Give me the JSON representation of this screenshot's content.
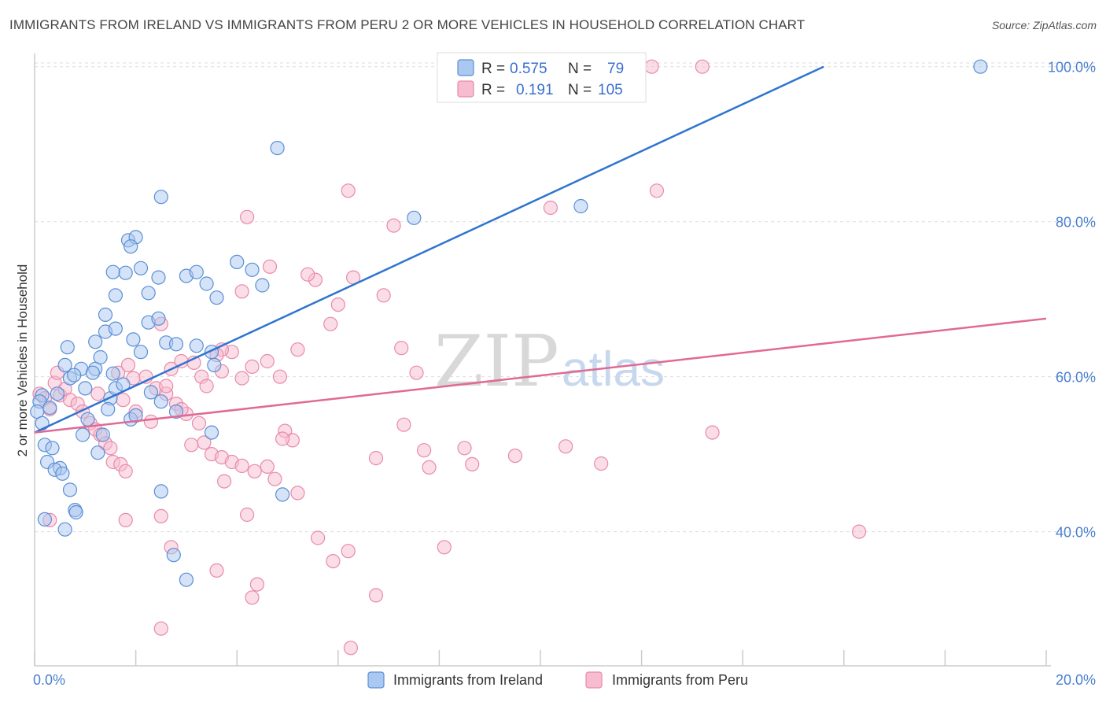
{
  "header": {
    "title": "IMMIGRANTS FROM IRELAND VS IMMIGRANTS FROM PERU 2 OR MORE VEHICLES IN HOUSEHOLD CORRELATION CHART",
    "source": "Source: ZipAtlas.com"
  },
  "watermark": {
    "zip": "ZIP",
    "atlas": "atlas"
  },
  "legend_stats": {
    "ireland": {
      "r_label": "R =",
      "r_value": "0.575",
      "n_label": "N =",
      "n_value": "79"
    },
    "peru": {
      "r_label": "R =",
      "r_value": "0.191",
      "n_label": "N =",
      "n_value": "105"
    }
  },
  "colors": {
    "ireland_fill": "#aac8f0",
    "ireland_stroke": "#5b8fd6",
    "ireland_line": "#2f74d0",
    "peru_fill": "#f7bcd0",
    "peru_stroke": "#e88aab",
    "peru_line": "#e06a95",
    "tick_label": "#4a7fd0",
    "grid": "#dddddd"
  },
  "chart_data": {
    "type": "scatter",
    "title": "IMMIGRANTS FROM IRELAND VS IMMIGRANTS FROM PERU 2 OR MORE VEHICLES IN HOUSEHOLD CORRELATION CHART",
    "xlabel": "",
    "ylabel": "2 or more Vehicles in Household",
    "xlim": [
      0,
      20
    ],
    "ylim": [
      22.7,
      101.7
    ],
    "x_tick_labels": [
      "0.0%",
      "20.0%"
    ],
    "y_ticks": [
      40,
      60,
      80,
      100
    ],
    "y_tick_labels": [
      "40.0%",
      "60.0%",
      "80.0%",
      "100.0%"
    ],
    "grid": true,
    "legend_position": "bottom",
    "series": [
      {
        "name": "Immigrants from Ireland",
        "trend": {
          "x0": 0,
          "y0": 52.8,
          "x1": 15.6,
          "y1": 100
        },
        "points": [
          [
            0.15,
            57.6
          ],
          [
            0.1,
            56.8
          ],
          [
            0.05,
            55.5
          ],
          [
            0.15,
            54.0
          ],
          [
            0.3,
            56.0
          ],
          [
            0.45,
            57.8
          ],
          [
            0.2,
            51.2
          ],
          [
            0.35,
            50.8
          ],
          [
            0.25,
            49.0
          ],
          [
            0.5,
            48.2
          ],
          [
            0.7,
            45.4
          ],
          [
            0.8,
            42.8
          ],
          [
            0.82,
            42.5
          ],
          [
            0.2,
            41.6
          ],
          [
            0.6,
            40.3
          ],
          [
            0.4,
            48.0
          ],
          [
            0.55,
            47.5
          ],
          [
            0.7,
            59.8
          ],
          [
            0.92,
            61.0
          ],
          [
            0.78,
            60.2
          ],
          [
            0.95,
            52.5
          ],
          [
            1.0,
            58.5
          ],
          [
            1.05,
            54.5
          ],
          [
            0.65,
            63.8
          ],
          [
            0.6,
            61.5
          ],
          [
            1.2,
            61.0
          ],
          [
            1.3,
            62.5
          ],
          [
            1.15,
            60.5
          ],
          [
            1.5,
            57.2
          ],
          [
            1.55,
            60.4
          ],
          [
            1.6,
            58.5
          ],
          [
            1.75,
            59.0
          ],
          [
            1.45,
            55.8
          ],
          [
            1.35,
            52.5
          ],
          [
            1.25,
            50.2
          ],
          [
            1.9,
            54.5
          ],
          [
            2.0,
            55.0
          ],
          [
            2.3,
            58.0
          ],
          [
            2.5,
            56.8
          ],
          [
            2.8,
            55.5
          ],
          [
            1.4,
            65.8
          ],
          [
            1.2,
            64.5
          ],
          [
            1.6,
            66.2
          ],
          [
            1.95,
            64.8
          ],
          [
            2.1,
            63.2
          ],
          [
            2.25,
            67.0
          ],
          [
            2.45,
            67.5
          ],
          [
            2.6,
            64.4
          ],
          [
            2.8,
            64.2
          ],
          [
            3.2,
            64.0
          ],
          [
            3.5,
            63.2
          ],
          [
            3.55,
            61.5
          ],
          [
            1.4,
            68.0
          ],
          [
            1.6,
            70.5
          ],
          [
            1.55,
            73.5
          ],
          [
            1.8,
            73.4
          ],
          [
            2.1,
            74.0
          ],
          [
            2.25,
            70.8
          ],
          [
            2.45,
            72.8
          ],
          [
            3.0,
            73.0
          ],
          [
            3.2,
            73.5
          ],
          [
            3.4,
            72.0
          ],
          [
            3.6,
            70.2
          ],
          [
            4.5,
            71.8
          ],
          [
            4.0,
            74.8
          ],
          [
            4.3,
            73.8
          ],
          [
            1.85,
            77.6
          ],
          [
            2.0,
            78.0
          ],
          [
            1.9,
            76.8
          ],
          [
            2.5,
            83.2
          ],
          [
            4.8,
            89.5
          ],
          [
            7.5,
            80.5
          ],
          [
            10.8,
            82.0
          ],
          [
            18.7,
            100
          ],
          [
            4.9,
            44.8
          ],
          [
            2.75,
            37.0
          ],
          [
            3.0,
            33.8
          ],
          [
            3.5,
            52.8
          ],
          [
            2.5,
            45.2
          ]
        ]
      },
      {
        "name": "Immigrants from Peru",
        "trend": {
          "x0": 0,
          "y0": 52.8,
          "x1": 20,
          "y1": 67.5
        },
        "points": [
          [
            0.1,
            57.8
          ],
          [
            0.2,
            57.2
          ],
          [
            0.3,
            55.8
          ],
          [
            0.4,
            59.2
          ],
          [
            0.5,
            57.6
          ],
          [
            0.45,
            60.5
          ],
          [
            0.6,
            58.4
          ],
          [
            0.7,
            57.0
          ],
          [
            0.85,
            56.5
          ],
          [
            0.3,
            41.5
          ],
          [
            0.95,
            55.5
          ],
          [
            1.1,
            54.0
          ],
          [
            1.2,
            53.2
          ],
          [
            1.3,
            52.5
          ],
          [
            1.4,
            51.4
          ],
          [
            1.5,
            50.8
          ],
          [
            1.55,
            49.0
          ],
          [
            1.7,
            48.7
          ],
          [
            1.8,
            47.8
          ],
          [
            1.65,
            60.5
          ],
          [
            1.85,
            61.5
          ],
          [
            1.95,
            59.8
          ],
          [
            2.2,
            60.0
          ],
          [
            2.4,
            58.5
          ],
          [
            2.6,
            57.8
          ],
          [
            2.8,
            56.5
          ],
          [
            3.0,
            55.2
          ],
          [
            3.25,
            54.0
          ],
          [
            3.35,
            51.5
          ],
          [
            3.5,
            50.0
          ],
          [
            3.7,
            49.6
          ],
          [
            3.9,
            49.0
          ],
          [
            4.1,
            48.5
          ],
          [
            4.35,
            47.8
          ],
          [
            4.6,
            48.4
          ],
          [
            4.75,
            46.8
          ],
          [
            4.95,
            53.0
          ],
          [
            5.1,
            51.8
          ],
          [
            5.2,
            45.0
          ],
          [
            2.5,
            66.8
          ],
          [
            2.7,
            61.0
          ],
          [
            2.9,
            62.0
          ],
          [
            3.15,
            61.8
          ],
          [
            3.3,
            60.0
          ],
          [
            3.4,
            58.8
          ],
          [
            3.7,
            60.7
          ],
          [
            3.9,
            63.2
          ],
          [
            4.1,
            59.8
          ],
          [
            4.3,
            61.3
          ],
          [
            4.6,
            62.0
          ],
          [
            4.85,
            60.0
          ],
          [
            5.2,
            63.5
          ],
          [
            5.55,
            72.5
          ],
          [
            5.85,
            66.8
          ],
          [
            6.0,
            69.3
          ],
          [
            6.3,
            72.8
          ],
          [
            6.9,
            70.5
          ],
          [
            7.25,
            63.7
          ],
          [
            7.55,
            60.5
          ],
          [
            7.3,
            53.8
          ],
          [
            6.75,
            49.5
          ],
          [
            7.7,
            50.5
          ],
          [
            7.8,
            48.3
          ],
          [
            8.5,
            50.8
          ],
          [
            8.65,
            48.7
          ],
          [
            9.5,
            49.8
          ],
          [
            10.5,
            51.0
          ],
          [
            11.2,
            48.8
          ],
          [
            13.4,
            52.8
          ],
          [
            16.3,
            40.0
          ],
          [
            4.1,
            71.0
          ],
          [
            4.65,
            74.2
          ],
          [
            5.4,
            73.2
          ],
          [
            6.2,
            84.0
          ],
          [
            7.1,
            79.5
          ],
          [
            10.2,
            81.8
          ],
          [
            12.3,
            84.0
          ],
          [
            12.2,
            100
          ],
          [
            13.2,
            100
          ],
          [
            4.2,
            80.6
          ],
          [
            3.7,
            63.5
          ],
          [
            2.6,
            58.8
          ],
          [
            2.9,
            55.8
          ],
          [
            3.1,
            51.2
          ],
          [
            2.3,
            54.2
          ],
          [
            3.6,
            62.8
          ],
          [
            2.0,
            55.5
          ],
          [
            1.75,
            57.0
          ],
          [
            1.25,
            57.8
          ],
          [
            3.75,
            46.5
          ],
          [
            4.9,
            52.0
          ],
          [
            5.6,
            39.2
          ],
          [
            5.9,
            36.2
          ],
          [
            6.2,
            37.5
          ],
          [
            6.75,
            31.8
          ],
          [
            6.25,
            25.0
          ],
          [
            3.6,
            35.0
          ],
          [
            4.3,
            31.5
          ],
          [
            4.4,
            33.2
          ],
          [
            4.2,
            42.2
          ],
          [
            2.5,
            42.0
          ],
          [
            2.7,
            38.0
          ],
          [
            1.8,
            41.5
          ],
          [
            2.5,
            27.5
          ],
          [
            8.1,
            38.0
          ]
        ]
      }
    ]
  },
  "bottom_legend": {
    "ireland_label": "Immigrants from Ireland",
    "peru_label": "Immigrants from Peru"
  }
}
